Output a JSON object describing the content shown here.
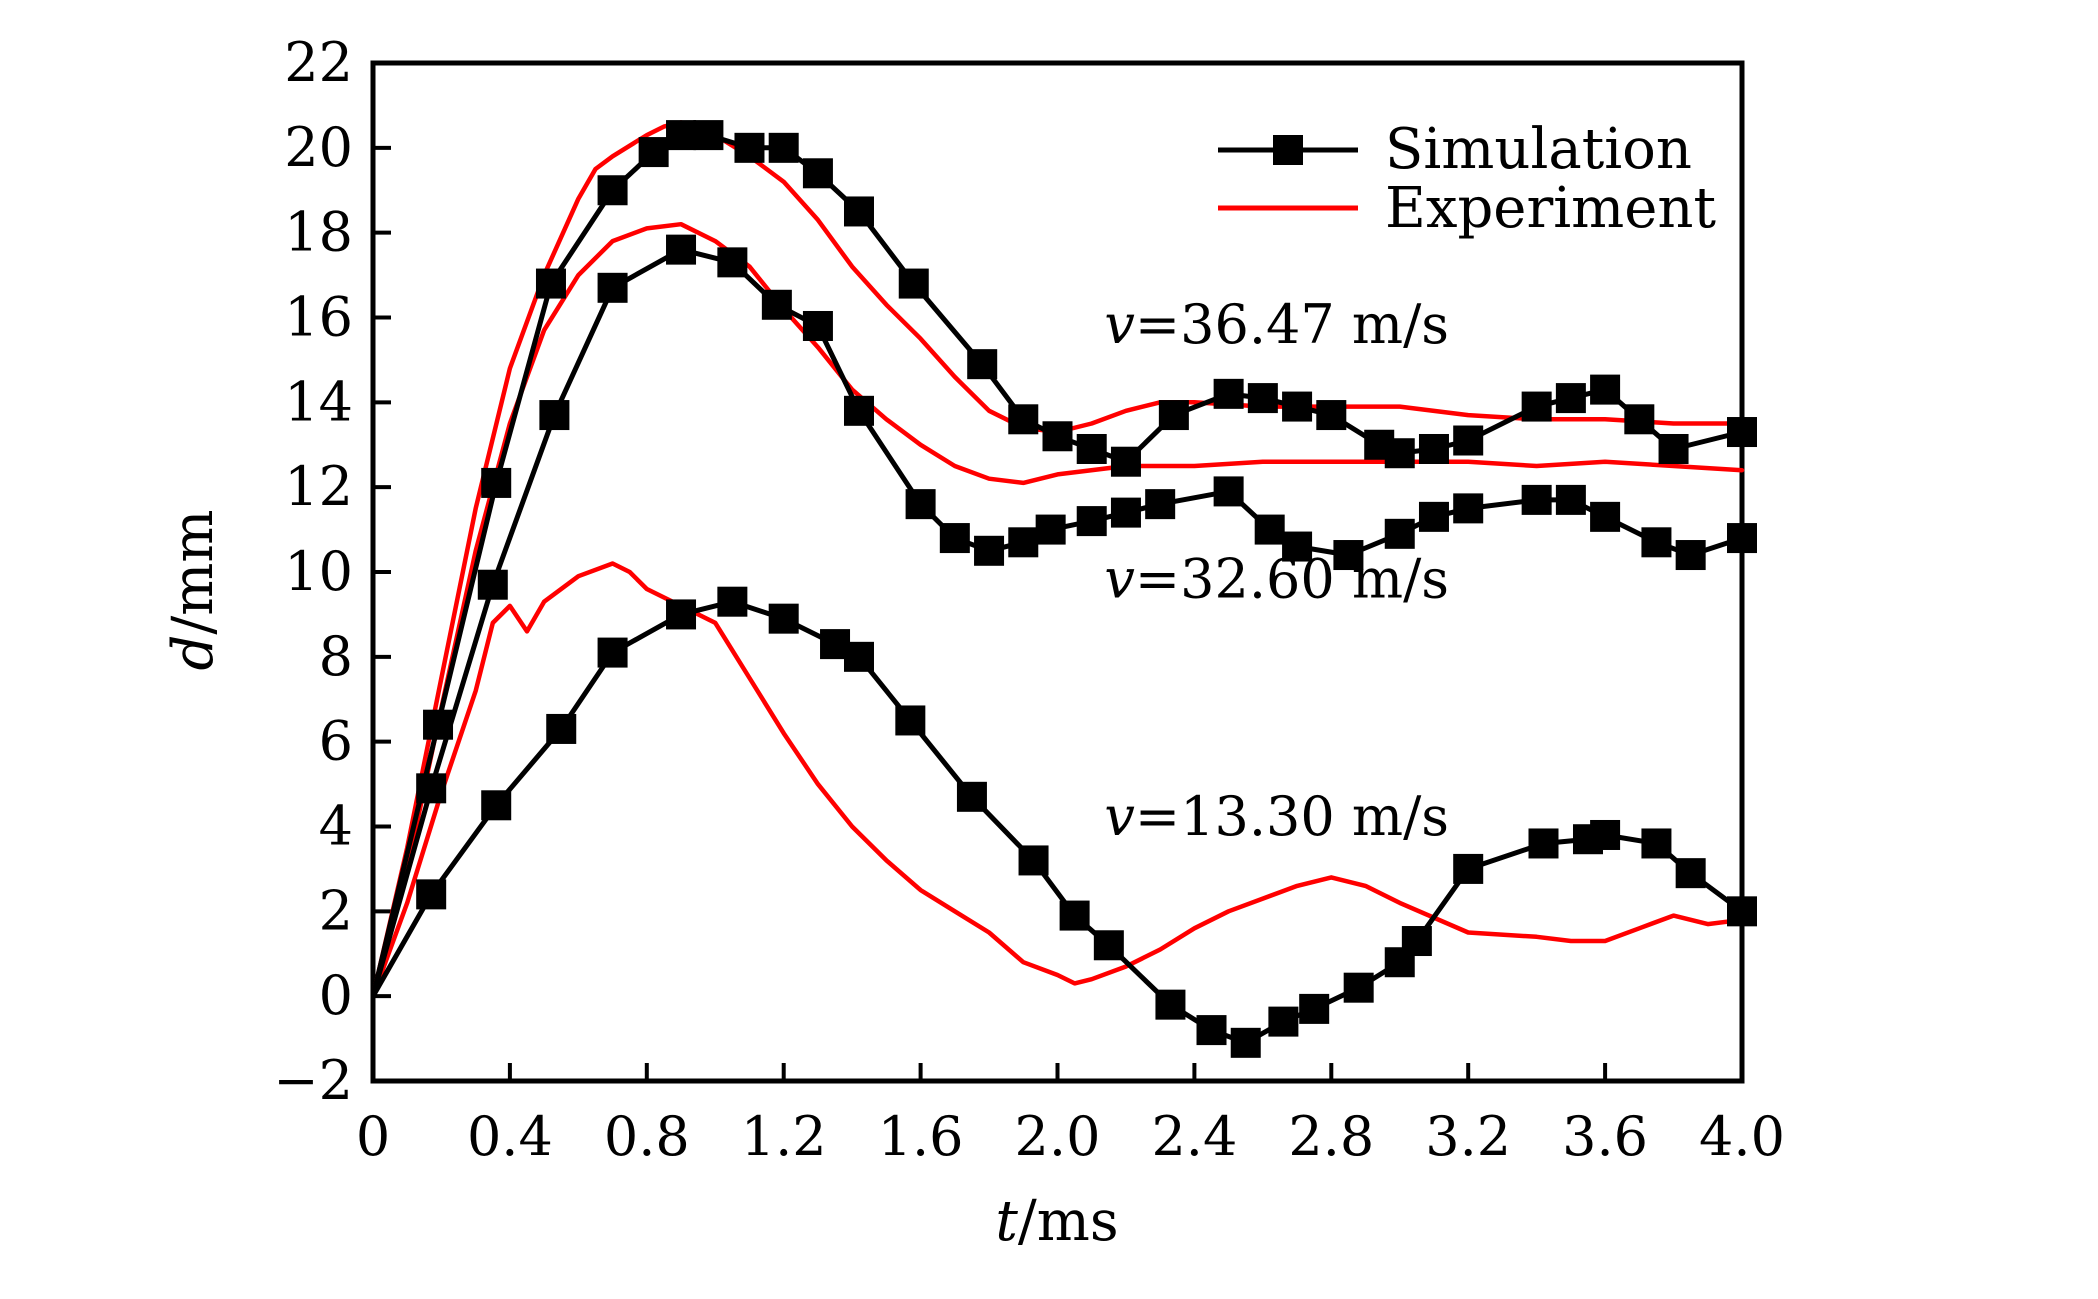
{
  "chart_data": {
    "type": "line",
    "title": "",
    "xlabel_var": "t",
    "xlabel_unit": "/ms",
    "ylabel_var": "d",
    "ylabel_unit": "/mm",
    "xlim": [
      0,
      4.0
    ],
    "ylim": [
      -2,
      22
    ],
    "x_ticks": [
      "0",
      "0.4",
      "0.8",
      "1.2",
      "1.6",
      "2.0",
      "2.4",
      "2.8",
      "3.2",
      "3.6",
      "4.0"
    ],
    "y_ticks": [
      "−2",
      "0",
      "2",
      "4",
      "6",
      "8",
      "10",
      "12",
      "14",
      "16",
      "18",
      "20",
      "22"
    ],
    "grid": false,
    "legend_position": "top-right",
    "legend": [
      {
        "label": "Simulation",
        "color": "#000000",
        "marker": "square"
      },
      {
        "label": "Experiment",
        "color": "#ff0000",
        "marker": "none"
      }
    ],
    "annotations": [
      {
        "text": "v=36.47 m/s",
        "x": 2.4,
        "y": 15.4
      },
      {
        "text": "v=32.60 m/s",
        "x": 2.4,
        "y": 9.4
      },
      {
        "text": "v=13.30 m/s",
        "x": 2.4,
        "y": 3.8
      }
    ],
    "series": [
      {
        "kind": "simulation",
        "condition": "v=36.47 m/s",
        "x": [
          0,
          0.19,
          0.36,
          0.52,
          0.7,
          0.82,
          0.9,
          0.98,
          1.1,
          1.2,
          1.3,
          1.42,
          1.58,
          1.78,
          1.9,
          2.0,
          2.1,
          2.2,
          2.34,
          2.5,
          2.6,
          2.7,
          2.8,
          2.94,
          3.0,
          3.1,
          3.2,
          3.4,
          3.5,
          3.6,
          3.7,
          3.8,
          4.0
        ],
        "y": [
          0,
          6.4,
          12.1,
          16.8,
          19.0,
          19.9,
          20.3,
          20.3,
          20.0,
          20.0,
          19.4,
          18.5,
          16.8,
          14.9,
          13.6,
          13.2,
          12.9,
          12.6,
          13.7,
          14.2,
          14.1,
          13.9,
          13.7,
          13.0,
          12.8,
          12.9,
          13.1,
          13.9,
          14.1,
          14.3,
          13.6,
          12.9,
          13.3
        ]
      },
      {
        "kind": "simulation",
        "condition": "v=32.60 m/s",
        "x": [
          0,
          0.17,
          0.35,
          0.53,
          0.7,
          0.9,
          1.05,
          1.18,
          1.3,
          1.42,
          1.6,
          1.7,
          1.8,
          1.9,
          1.98,
          2.1,
          2.2,
          2.3,
          2.5,
          2.62,
          2.7,
          2.85,
          3.0,
          3.1,
          3.2,
          3.4,
          3.5,
          3.6,
          3.75,
          3.85,
          4.0
        ],
        "y": [
          0,
          4.9,
          9.7,
          13.7,
          16.7,
          17.6,
          17.3,
          16.3,
          15.8,
          13.8,
          11.6,
          10.8,
          10.5,
          10.7,
          11.0,
          11.2,
          11.4,
          11.6,
          11.9,
          11.0,
          10.6,
          10.4,
          10.9,
          11.3,
          11.5,
          11.7,
          11.7,
          11.3,
          10.7,
          10.4,
          10.8
        ]
      },
      {
        "kind": "simulation",
        "condition": "v=13.30 m/s",
        "x": [
          0,
          0.17,
          0.36,
          0.55,
          0.7,
          0.9,
          1.05,
          1.2,
          1.35,
          1.42,
          1.57,
          1.75,
          1.93,
          2.05,
          2.15,
          2.33,
          2.45,
          2.55,
          2.66,
          2.75,
          2.88,
          3.0,
          3.05,
          3.2,
          3.42,
          3.55,
          3.6,
          3.75,
          3.85,
          4.0
        ],
        "y": [
          0,
          2.4,
          4.5,
          6.3,
          8.1,
          9.0,
          9.3,
          8.9,
          8.3,
          8.0,
          6.5,
          4.7,
          3.2,
          1.9,
          1.2,
          -0.2,
          -0.8,
          -1.1,
          -0.6,
          -0.3,
          0.2,
          0.8,
          1.3,
          3.0,
          3.6,
          3.7,
          3.8,
          3.6,
          2.9,
          2.0
        ]
      },
      {
        "kind": "experiment",
        "condition": "v=36.47 m/s",
        "x": [
          0,
          0.1,
          0.2,
          0.3,
          0.4,
          0.5,
          0.6,
          0.65,
          0.7,
          0.8,
          0.85,
          0.9,
          0.95,
          1.0,
          1.1,
          1.2,
          1.3,
          1.4,
          1.5,
          1.6,
          1.7,
          1.8,
          1.9,
          2.0,
          2.1,
          2.2,
          2.3,
          2.4,
          2.6,
          2.8,
          3.0,
          3.2,
          3.4,
          3.6,
          3.8,
          4.0
        ],
        "y": [
          0,
          3.5,
          7.5,
          11.5,
          14.8,
          17.0,
          18.8,
          19.5,
          19.8,
          20.3,
          20.5,
          20.6,
          20.5,
          20.3,
          19.8,
          19.2,
          18.3,
          17.2,
          16.3,
          15.5,
          14.6,
          13.8,
          13.4,
          13.3,
          13.5,
          13.8,
          14.0,
          14.0,
          13.9,
          13.9,
          13.9,
          13.7,
          13.6,
          13.6,
          13.5,
          13.5
        ]
      },
      {
        "kind": "experiment",
        "condition": "v=32.60 m/s",
        "x": [
          0,
          0.1,
          0.2,
          0.3,
          0.4,
          0.5,
          0.6,
          0.7,
          0.8,
          0.9,
          1.0,
          1.1,
          1.2,
          1.3,
          1.4,
          1.5,
          1.6,
          1.7,
          1.8,
          1.9,
          2.0,
          2.2,
          2.4,
          2.6,
          2.8,
          3.0,
          3.2,
          3.4,
          3.6,
          3.8,
          4.0
        ],
        "y": [
          0,
          3.0,
          6.8,
          10.5,
          13.5,
          15.7,
          17.0,
          17.8,
          18.1,
          18.2,
          17.8,
          17.2,
          16.2,
          15.3,
          14.3,
          13.6,
          13.0,
          12.5,
          12.2,
          12.1,
          12.3,
          12.5,
          12.5,
          12.6,
          12.6,
          12.6,
          12.6,
          12.5,
          12.6,
          12.5,
          12.4
        ]
      },
      {
        "kind": "experiment",
        "condition": "v=13.30 m/s",
        "x": [
          0,
          0.1,
          0.2,
          0.3,
          0.35,
          0.4,
          0.45,
          0.5,
          0.6,
          0.7,
          0.75,
          0.8,
          0.9,
          1.0,
          1.1,
          1.2,
          1.3,
          1.4,
          1.5,
          1.6,
          1.7,
          1.8,
          1.9,
          2.0,
          2.05,
          2.1,
          2.2,
          2.3,
          2.4,
          2.5,
          2.6,
          2.7,
          2.8,
          2.9,
          3.0,
          3.2,
          3.4,
          3.5,
          3.6,
          3.7,
          3.8,
          3.9,
          4.0
        ],
        "y": [
          0,
          2.2,
          4.8,
          7.2,
          8.8,
          9.2,
          8.6,
          9.3,
          9.9,
          10.2,
          10.0,
          9.6,
          9.2,
          8.8,
          7.5,
          6.2,
          5.0,
          4.0,
          3.2,
          2.5,
          2.0,
          1.5,
          0.8,
          0.5,
          0.3,
          0.4,
          0.7,
          1.1,
          1.6,
          2.0,
          2.3,
          2.6,
          2.8,
          2.6,
          2.2,
          1.5,
          1.4,
          1.3,
          1.3,
          1.6,
          1.9,
          1.7,
          1.8
        ]
      }
    ]
  }
}
